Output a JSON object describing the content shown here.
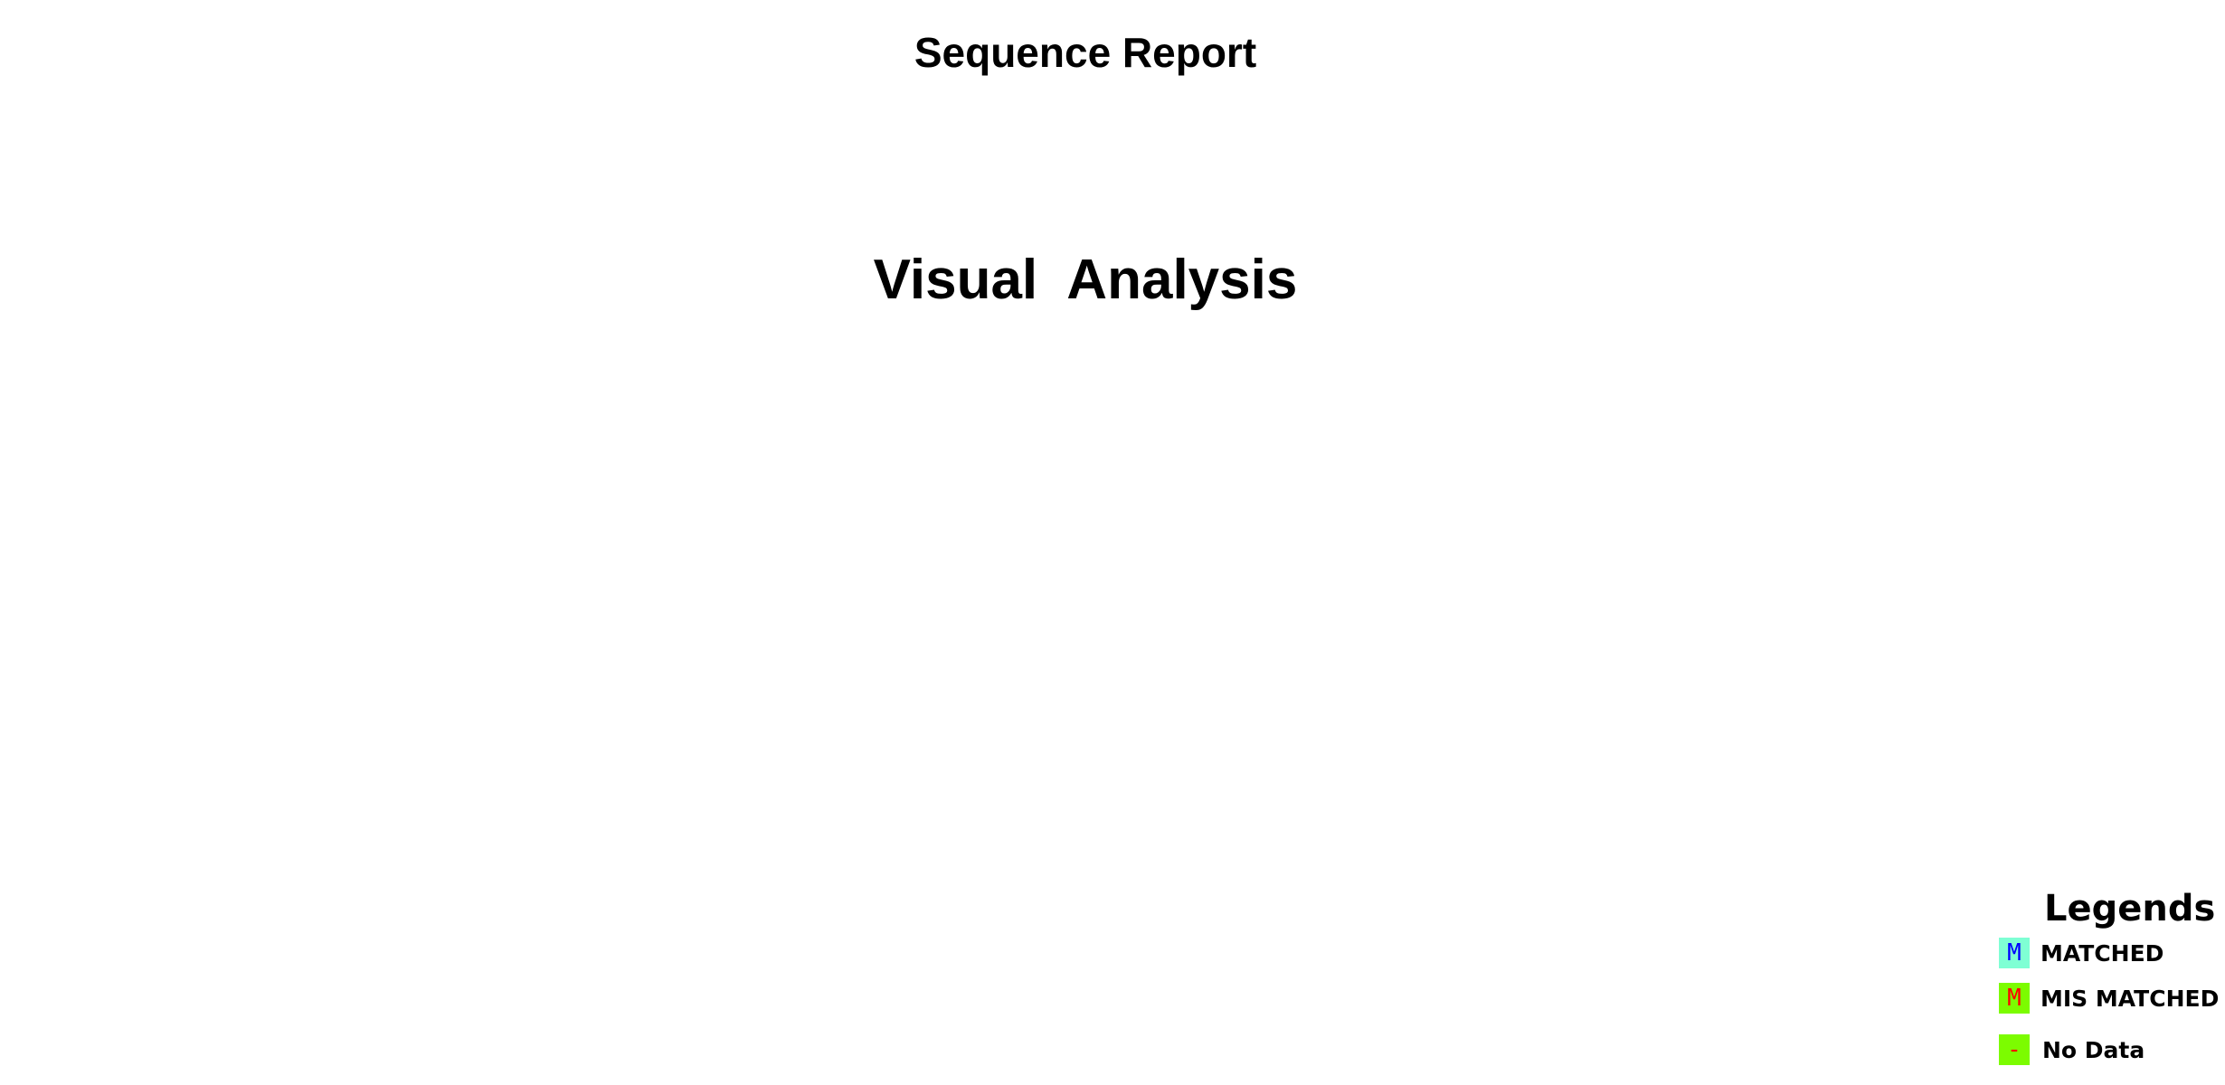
{
  "report": {
    "title": "Sequence Report",
    "section_title": "Visual  Analysis"
  },
  "legend": {
    "heading": "Legends",
    "items": [
      {
        "symbol": "M",
        "label": "MATCHED",
        "swatch_color": "#7fffd4",
        "symbol_color": "#0000ff"
      },
      {
        "symbol": "M",
        "label": "MIS MATCHED",
        "swatch_color": "#7cfc00",
        "symbol_color": "#ff0000"
      },
      {
        "symbol": "-",
        "label": "No Data",
        "swatch_color": "#7cfc00",
        "symbol_color": "#ff0000"
      }
    ]
  }
}
